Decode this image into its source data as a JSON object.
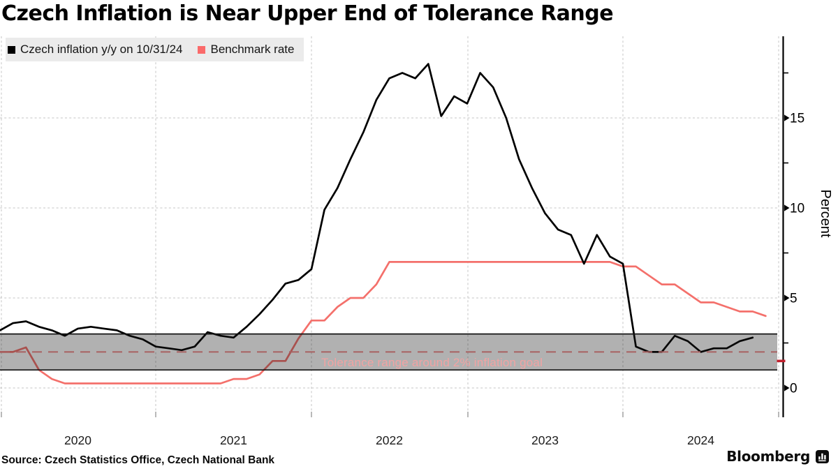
{
  "title": "Czech Inflation is Near Upper End of Tolerance Range",
  "legend": {
    "inflation_label": "Czech inflation y/y on 10/31/24",
    "benchmark_label": "Benchmark rate"
  },
  "source": "Source: Czech Statistics Office, Czech National Bank",
  "brand": {
    "name": "Bloomberg",
    "icon": "bar-chart-icon"
  },
  "colors": {
    "inflation_line": "#000000",
    "benchmark_line": "#f4706b",
    "legend_bg": "#ebebeb",
    "gridline": "#c4c4c4",
    "axis": "#000000",
    "band_fill": "rgba(20,20,20,0.335)",
    "band_border": "#141414",
    "goal_dash": "#a86161",
    "band_label_text": "#f1a3a3",
    "annotation_tick": "#c2202e",
    "tick_label": "#000000",
    "year_label": "#1c1c1c"
  },
  "chart_data": {
    "type": "line",
    "title": "Czech Inflation is Near Upper End of Tolerance Range",
    "ylabel": "Percent",
    "xlabel": "",
    "grid": true,
    "legend_position": "top-left",
    "x_frequency": "monthly",
    "x_start_month": "2019-12",
    "x_tick_labels": [
      "2020",
      "2021",
      "2022",
      "2023",
      "2024"
    ],
    "y_ticks": [
      0,
      5,
      10,
      15
    ],
    "y_minor_ticks": [
      2.5,
      7.5,
      12.5,
      17.5
    ],
    "ylim": [
      -1.3,
      19.2
    ],
    "series": [
      {
        "name": "Czech inflation y/y on 10/31/24",
        "color": "#000000",
        "end_month": "2024-10",
        "values": [
          3.2,
          3.6,
          3.7,
          3.4,
          3.2,
          2.9,
          3.3,
          3.4,
          3.3,
          3.2,
          2.9,
          2.7,
          2.3,
          2.2,
          2.1,
          2.3,
          3.1,
          2.9,
          2.8,
          3.4,
          4.1,
          4.9,
          5.8,
          6.0,
          6.6,
          9.9,
          11.1,
          12.7,
          14.2,
          16.0,
          17.2,
          17.5,
          17.2,
          18.0,
          15.1,
          16.2,
          15.8,
          17.5,
          16.7,
          15.0,
          12.7,
          11.1,
          9.7,
          8.8,
          8.5,
          6.9,
          8.5,
          7.3,
          6.9,
          2.3,
          2.0,
          2.0,
          2.9,
          2.6,
          2.0,
          2.2,
          2.2,
          2.6,
          2.8
        ]
      },
      {
        "name": "Benchmark rate",
        "color": "#f4706b",
        "end_month": "2024-11",
        "values": [
          2.0,
          2.0,
          2.25,
          1.0,
          0.5,
          0.25,
          0.25,
          0.25,
          0.25,
          0.25,
          0.25,
          0.25,
          0.25,
          0.25,
          0.25,
          0.25,
          0.25,
          0.25,
          0.5,
          0.5,
          0.75,
          1.5,
          1.5,
          2.75,
          3.75,
          3.75,
          4.5,
          5.0,
          5.0,
          5.75,
          7.0,
          7.0,
          7.0,
          7.0,
          7.0,
          7.0,
          7.0,
          7.0,
          7.0,
          7.0,
          7.0,
          7.0,
          7.0,
          7.0,
          7.0,
          7.0,
          7.0,
          7.0,
          6.75,
          6.75,
          6.25,
          5.75,
          5.75,
          5.25,
          4.75,
          4.75,
          4.5,
          4.25,
          4.25,
          4.0
        ]
      }
    ],
    "band": {
      "label": "Tolerance range around 2% inflation goal",
      "low": 1,
      "high": 3,
      "goal_dashed_at": 2
    },
    "annotations": [
      {
        "type": "axis-tick",
        "axis": "y",
        "value": 1.5,
        "color": "#c2202e"
      }
    ]
  }
}
